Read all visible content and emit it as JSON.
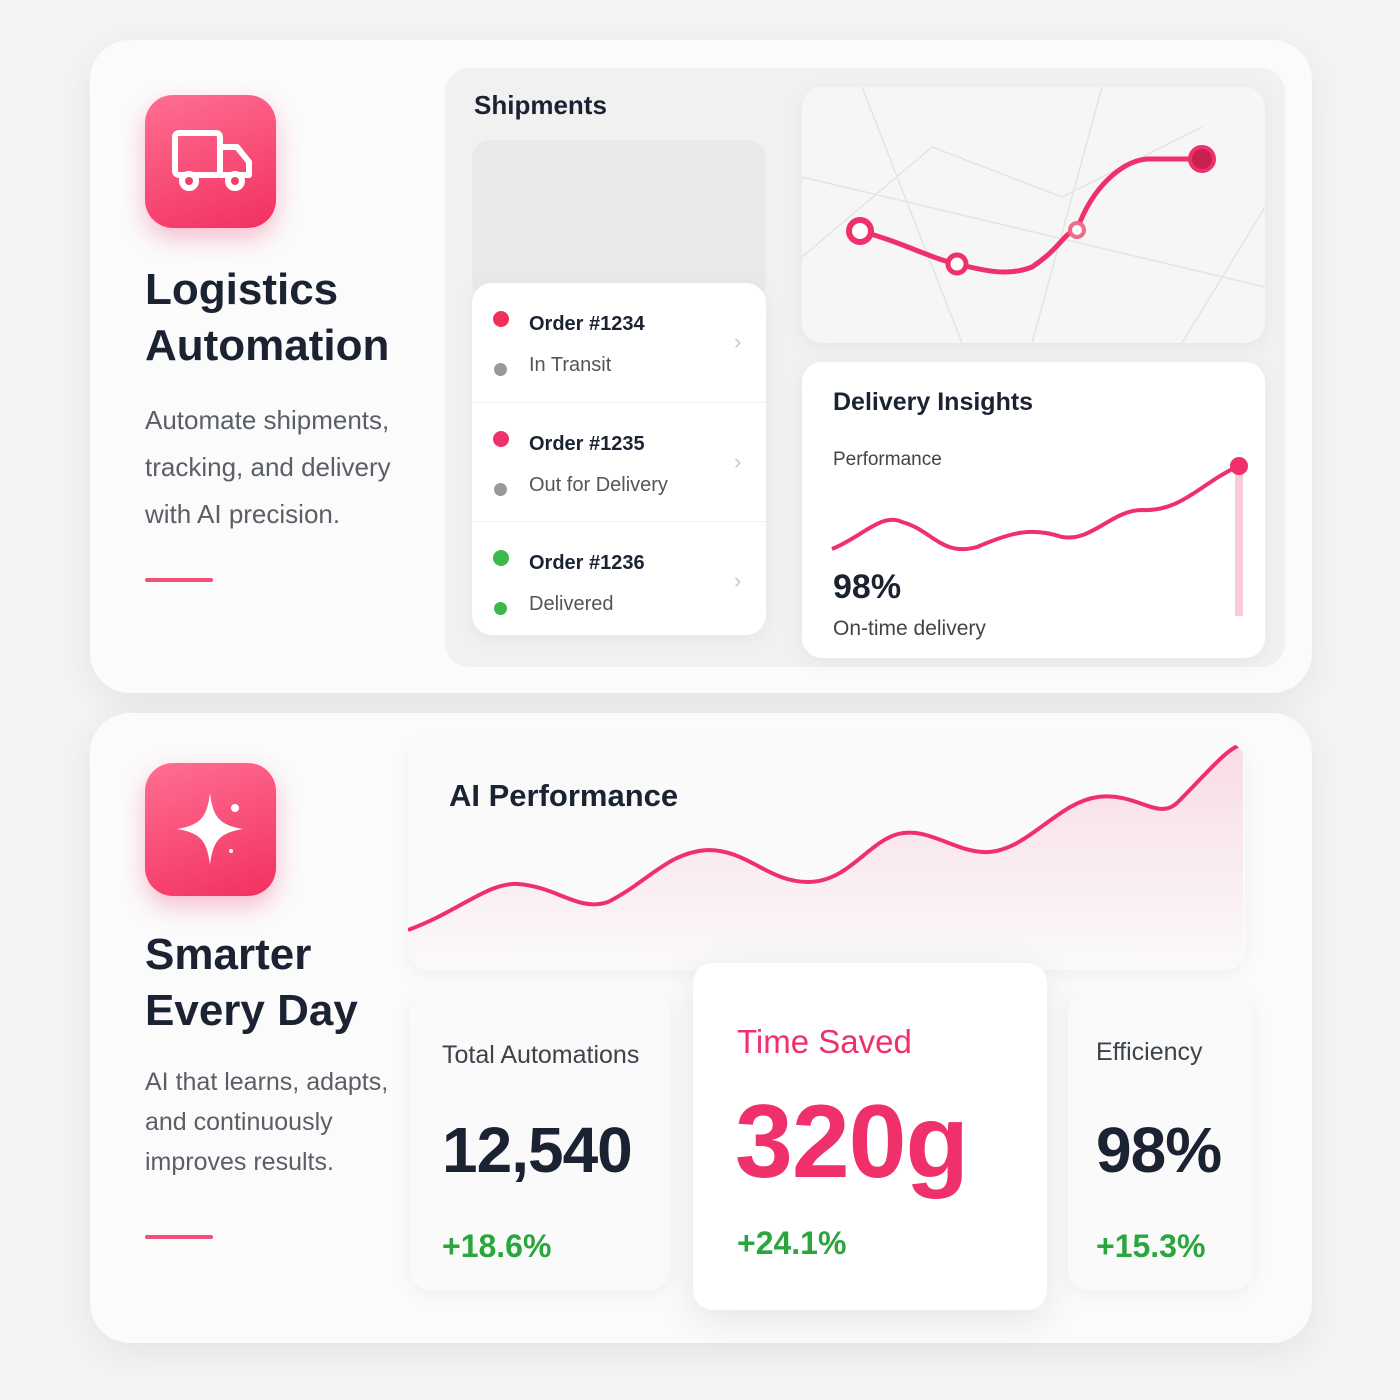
{
  "logistics": {
    "title": "Logistics Automation",
    "description": "Automate shipments, tracking, and delivery with AI precision.",
    "shipments": {
      "title": "Shipments",
      "orders": [
        {
          "id": "Order #1234",
          "status": "In Transit"
        },
        {
          "id": "Order #1235",
          "status": "Out for Delivery"
        },
        {
          "id": "Order #1236",
          "status": "Delivered"
        }
      ]
    },
    "insights": {
      "title": "Delivery Insights",
      "subtitle": "Performance",
      "value": "98%",
      "caption": "On-time delivery"
    }
  },
  "smarter": {
    "title": "Smarter Every Day",
    "description": "AI that learns, adapts, and continuously improves results.",
    "chart_title": "AI Performance",
    "stats": [
      {
        "label": "Total Automations",
        "value": "12,540",
        "change": "+18.6%"
      },
      {
        "label": "Time Saved",
        "value": "320g",
        "change": "+24.1%"
      },
      {
        "label": "Efficiency",
        "value": "98%",
        "change": "+15.3%"
      }
    ]
  }
}
